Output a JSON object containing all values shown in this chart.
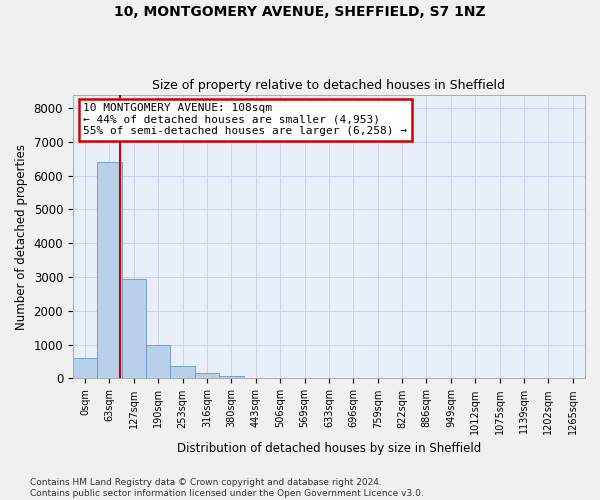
{
  "title_line1": "10, MONTGOMERY AVENUE, SHEFFIELD, S7 1NZ",
  "title_line2": "Size of property relative to detached houses in Sheffield",
  "xlabel": "Distribution of detached houses by size in Sheffield",
  "ylabel": "Number of detached properties",
  "bar_labels": [
    "0sqm",
    "63sqm",
    "127sqm",
    "190sqm",
    "253sqm",
    "316sqm",
    "380sqm",
    "443sqm",
    "506sqm",
    "569sqm",
    "633sqm",
    "696sqm",
    "759sqm",
    "822sqm",
    "886sqm",
    "949sqm",
    "1012sqm",
    "1075sqm",
    "1139sqm",
    "1202sqm",
    "1265sqm"
  ],
  "bar_values": [
    600,
    6400,
    2950,
    975,
    370,
    150,
    80,
    0,
    0,
    0,
    0,
    0,
    0,
    0,
    0,
    0,
    0,
    0,
    0,
    0,
    0
  ],
  "bar_color": "#b8d0ea",
  "bar_edge_color": "#6699cc",
  "property_line_x": 1.45,
  "annotation_line1": "10 MONTGOMERY AVENUE: 108sqm",
  "annotation_line2": "← 44% of detached houses are smaller (4,953)",
  "annotation_line3": "55% of semi-detached houses are larger (6,258) →",
  "annotation_box_color": "#ffffff",
  "annotation_box_edge_color": "#cc0000",
  "vline_color": "#cc0000",
  "ylim": [
    0,
    8400
  ],
  "yticks": [
    0,
    1000,
    2000,
    3000,
    4000,
    5000,
    6000,
    7000,
    8000
  ],
  "grid_color": "#c8d4e8",
  "bg_color": "#e8eef8",
  "fig_bg_color": "#f0f0f0",
  "footer_line1": "Contains HM Land Registry data © Crown copyright and database right 2024.",
  "footer_line2": "Contains public sector information licensed under the Open Government Licence v3.0."
}
